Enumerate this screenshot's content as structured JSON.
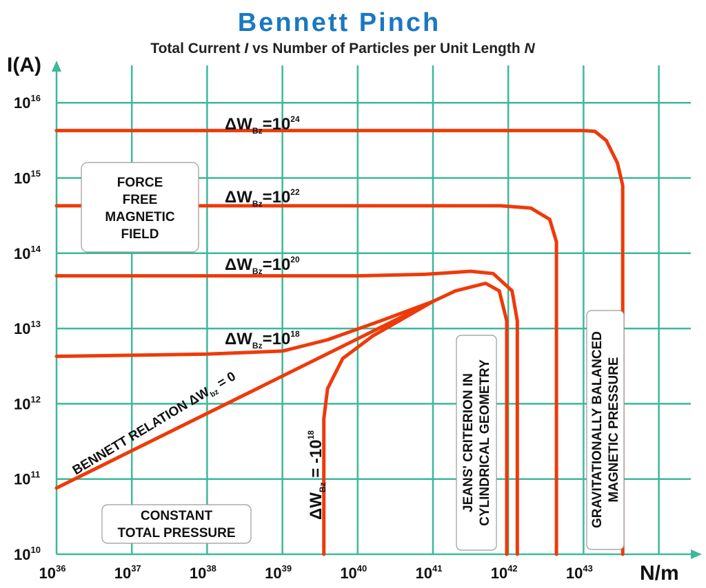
{
  "chart_data": {
    "type": "line",
    "title": "Bennett Pinch",
    "subtitle_parts": [
      "Total Current ",
      "I",
      " vs Number of Particles per Unit Length ",
      "N"
    ],
    "xlabel": "N/m",
    "ylabel": "I(A)",
    "x_scale": "log",
    "y_scale": "log",
    "xlim": [
      1e+36,
      1e+44
    ],
    "ylim": [
      10000000000.0,
      1e+16
    ],
    "grid": true,
    "x_ticks": [
      {
        "base": "10",
        "exp": "36"
      },
      {
        "base": "10",
        "exp": "37"
      },
      {
        "base": "10",
        "exp": "38"
      },
      {
        "base": "10",
        "exp": "39"
      },
      {
        "base": "10",
        "exp": "40"
      },
      {
        "base": "10",
        "exp": "41"
      },
      {
        "base": "10",
        "exp": "42"
      },
      {
        "base": "10",
        "exp": "43"
      }
    ],
    "y_ticks": [
      {
        "base": "10",
        "exp": "10"
      },
      {
        "base": "10",
        "exp": "11"
      },
      {
        "base": "10",
        "exp": "12"
      },
      {
        "base": "10",
        "exp": "13"
      },
      {
        "base": "10",
        "exp": "14"
      },
      {
        "base": "10",
        "exp": "15"
      },
      {
        "base": "10",
        "exp": "16"
      }
    ],
    "series": [
      {
        "label": {
          "delta": "ΔW",
          "sub": "Bz",
          "eq": "=10",
          "sup": "24"
        },
        "log_points": [
          [
            36,
            15.63
          ],
          [
            40,
            15.63
          ],
          [
            42,
            15.63
          ],
          [
            43,
            15.63
          ],
          [
            43.15,
            15.62
          ],
          [
            43.3,
            15.5
          ],
          [
            43.45,
            15.2
          ],
          [
            43.52,
            14.9
          ],
          [
            43.52,
            10
          ]
        ]
      },
      {
        "label": {
          "delta": "ΔW",
          "sub": "Bz",
          "eq": "=10",
          "sup": "22"
        },
        "log_points": [
          [
            36,
            14.63
          ],
          [
            40,
            14.63
          ],
          [
            41.9,
            14.63
          ],
          [
            42.3,
            14.6
          ],
          [
            42.55,
            14.45
          ],
          [
            42.64,
            14.15
          ],
          [
            42.64,
            10
          ]
        ]
      },
      {
        "label": {
          "delta": "ΔW",
          "sub": "Bz",
          "eq": "=10",
          "sup": "20"
        },
        "log_points": [
          [
            36,
            13.7
          ],
          [
            40,
            13.7
          ],
          [
            40.9,
            13.72
          ],
          [
            41.5,
            13.76
          ],
          [
            41.8,
            13.73
          ],
          [
            42.05,
            13.5
          ],
          [
            42.12,
            13.1
          ],
          [
            42.12,
            10
          ]
        ]
      },
      {
        "label": {
          "delta": "ΔW",
          "sub": "Bz",
          "eq": "=10",
          "sup": "18"
        },
        "log_points": [
          [
            36,
            12.63
          ],
          [
            38,
            12.66
          ],
          [
            39,
            12.7
          ],
          [
            39.6,
            12.85
          ],
          [
            40.3,
            13.1
          ],
          [
            41,
            13.36
          ]
        ]
      },
      {
        "label": {
          "text": "BENNETT RELATION ΔW",
          "sub": "bz",
          "eq": " = 0"
        },
        "log_points": [
          [
            36,
            10.88
          ],
          [
            41,
            13.36
          ],
          [
            41.3,
            13.5
          ],
          [
            41.7,
            13.6
          ],
          [
            41.88,
            13.5
          ],
          [
            41.98,
            13.1
          ],
          [
            41.98,
            10
          ]
        ]
      },
      {
        "label": {
          "delta": "ΔW",
          "sub": "Bz",
          "eq": " = -10",
          "sup": "18"
        },
        "log_points": [
          [
            39.55,
            10
          ],
          [
            39.55,
            11.8
          ],
          [
            39.6,
            12.2
          ],
          [
            39.8,
            12.6
          ],
          [
            40.2,
            12.9
          ],
          [
            41,
            13.36
          ]
        ]
      }
    ],
    "annotations": [
      {
        "lines": [
          "FORCE",
          "FREE",
          "MAGNETIC",
          "FIELD"
        ]
      },
      {
        "lines": [
          "CONSTANT",
          "TOTAL PRESSURE"
        ]
      },
      {
        "lines": [
          "JEANS' CRITERION  IN",
          "CYLINDRICAL GEOMETRY"
        ]
      },
      {
        "lines": [
          "GRAVITATIONALLY  BALANCED",
          "MAGNETIC  PRESSURE"
        ]
      }
    ],
    "colors": {
      "curve": "#ee3a0a",
      "grid": "#3cb89a",
      "title": "#1a78c2"
    }
  }
}
